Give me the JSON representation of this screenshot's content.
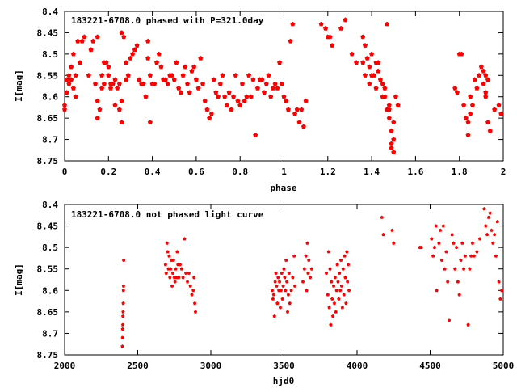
{
  "chart_data": [
    {
      "type": "scatter",
      "title": "183221-6708.0 phased with P=321.0day",
      "xlabel": "phase",
      "ylabel": "I[mag]",
      "xlim": [
        0,
        2
      ],
      "ylim": [
        8.4,
        8.75
      ],
      "y_inverted": true,
      "grid": false,
      "marker": "filled-pentagon",
      "color": "#ff0000",
      "x_ticks": [
        "0",
        "0.2",
        "0.4",
        "0.6",
        "0.8",
        "1",
        "1.2",
        "1.4",
        "1.6",
        "1.8",
        "2"
      ],
      "y_ticks": [
        "8.4",
        "8.45",
        "8.5",
        "8.55",
        "8.6",
        "8.65",
        "8.7",
        "8.75"
      ],
      "points": [
        [
          0.0,
          8.62
        ],
        [
          0.0,
          8.63
        ],
        [
          0.01,
          8.59
        ],
        [
          0.01,
          8.56
        ],
        [
          0.02,
          8.55
        ],
        [
          0.02,
          8.57
        ],
        [
          0.03,
          8.53
        ],
        [
          0.03,
          8.56
        ],
        [
          0.04,
          8.58
        ],
        [
          0.04,
          8.5
        ],
        [
          0.05,
          8.55
        ],
        [
          0.05,
          8.6
        ],
        [
          0.06,
          8.47
        ],
        [
          0.07,
          8.52
        ],
        [
          0.08,
          8.47
        ],
        [
          0.09,
          8.46
        ],
        [
          0.11,
          8.55
        ],
        [
          0.12,
          8.49
        ],
        [
          0.13,
          8.47
        ],
        [
          0.14,
          8.57
        ],
        [
          0.15,
          8.46
        ],
        [
          0.15,
          8.61
        ],
        [
          0.15,
          8.65
        ],
        [
          0.16,
          8.63
        ],
        [
          0.17,
          8.58
        ],
        [
          0.17,
          8.55
        ],
        [
          0.18,
          8.52
        ],
        [
          0.18,
          8.57
        ],
        [
          0.19,
          8.52
        ],
        [
          0.2,
          8.55
        ],
        [
          0.2,
          8.53
        ],
        [
          0.21,
          8.58
        ],
        [
          0.21,
          8.57
        ],
        [
          0.22,
          8.57
        ],
        [
          0.23,
          8.56
        ],
        [
          0.23,
          8.62
        ],
        [
          0.24,
          8.58
        ],
        [
          0.25,
          8.57
        ],
        [
          0.25,
          8.63
        ],
        [
          0.26,
          8.61
        ],
        [
          0.26,
          8.66
        ],
        [
          0.26,
          8.45
        ],
        [
          0.27,
          8.46
        ],
        [
          0.28,
          8.52
        ],
        [
          0.28,
          8.56
        ],
        [
          0.29,
          8.55
        ],
        [
          0.3,
          8.51
        ],
        [
          0.31,
          8.5
        ],
        [
          0.32,
          8.49
        ],
        [
          0.33,
          8.48
        ],
        [
          0.34,
          8.56
        ],
        [
          0.35,
          8.57
        ],
        [
          0.36,
          8.57
        ],
        [
          0.37,
          8.6
        ],
        [
          0.38,
          8.51
        ],
        [
          0.38,
          8.47
        ],
        [
          0.39,
          8.55
        ],
        [
          0.39,
          8.66
        ],
        [
          0.4,
          8.57
        ],
        [
          0.41,
          8.57
        ],
        [
          0.42,
          8.52
        ],
        [
          0.43,
          8.5
        ],
        [
          0.44,
          8.53
        ],
        [
          0.45,
          8.56
        ],
        [
          0.46,
          8.56
        ],
        [
          0.47,
          8.57
        ],
        [
          0.48,
          8.55
        ],
        [
          0.49,
          8.55
        ],
        [
          0.5,
          8.56
        ],
        [
          0.51,
          8.52
        ],
        [
          0.52,
          8.58
        ],
        [
          0.53,
          8.59
        ],
        [
          0.54,
          8.55
        ],
        [
          0.55,
          8.53
        ],
        [
          0.56,
          8.57
        ],
        [
          0.57,
          8.59
        ],
        [
          0.58,
          8.54
        ],
        [
          0.59,
          8.53
        ],
        [
          0.6,
          8.56
        ],
        [
          0.61,
          8.58
        ],
        [
          0.62,
          8.51
        ],
        [
          0.63,
          8.57
        ],
        [
          0.64,
          8.61
        ],
        [
          0.65,
          8.63
        ],
        [
          0.66,
          8.65
        ],
        [
          0.67,
          8.64
        ],
        [
          0.68,
          8.56
        ],
        [
          0.69,
          8.59
        ],
        [
          0.7,
          8.6
        ],
        [
          0.71,
          8.57
        ],
        [
          0.72,
          8.55
        ],
        [
          0.73,
          8.6
        ],
        [
          0.74,
          8.62
        ],
        [
          0.75,
          8.59
        ],
        [
          0.76,
          8.63
        ],
        [
          0.77,
          8.6
        ],
        [
          0.78,
          8.55
        ],
        [
          0.79,
          8.61
        ],
        [
          0.8,
          8.62
        ],
        [
          0.81,
          8.57
        ],
        [
          0.82,
          8.61
        ],
        [
          0.83,
          8.6
        ],
        [
          0.84,
          8.55
        ],
        [
          0.85,
          8.6
        ],
        [
          0.86,
          8.56
        ],
        [
          0.87,
          8.69
        ],
        [
          0.88,
          8.58
        ],
        [
          0.89,
          8.56
        ],
        [
          0.9,
          8.56
        ],
        [
          0.91,
          8.59
        ],
        [
          0.92,
          8.57
        ],
        [
          0.93,
          8.55
        ],
        [
          0.94,
          8.6
        ],
        [
          0.95,
          8.58
        ],
        [
          0.96,
          8.57
        ],
        [
          0.97,
          8.58
        ],
        [
          0.98,
          8.52
        ],
        [
          0.99,
          8.57
        ],
        [
          1.0,
          8.6
        ],
        [
          1.01,
          8.61
        ],
        [
          1.02,
          8.63
        ],
        [
          1.03,
          8.47
        ],
        [
          1.04,
          8.43
        ],
        [
          1.05,
          8.64
        ],
        [
          1.06,
          8.63
        ],
        [
          1.07,
          8.66
        ],
        [
          1.08,
          8.63
        ],
        [
          1.09,
          8.67
        ],
        [
          1.1,
          8.61
        ],
        [
          1.17,
          8.43
        ],
        [
          1.19,
          8.44
        ],
        [
          1.2,
          8.46
        ],
        [
          1.21,
          8.46
        ],
        [
          1.22,
          8.48
        ],
        [
          1.26,
          8.44
        ],
        [
          1.28,
          8.42
        ],
        [
          1.31,
          8.5
        ],
        [
          1.33,
          8.52
        ],
        [
          1.36,
          8.46
        ],
        [
          1.37,
          8.48
        ],
        [
          1.38,
          8.51
        ],
        [
          1.39,
          8.53
        ],
        [
          1.39,
          8.57
        ],
        [
          1.4,
          8.55
        ],
        [
          1.4,
          8.5
        ],
        [
          1.41,
          8.55
        ],
        [
          1.42,
          8.52
        ],
        [
          1.42,
          8.58
        ],
        [
          1.43,
          8.54
        ],
        [
          1.44,
          8.56
        ],
        [
          1.45,
          8.57
        ],
        [
          1.45,
          8.6
        ],
        [
          1.46,
          8.6
        ],
        [
          1.47,
          8.43
        ],
        [
          1.47,
          8.63
        ],
        [
          1.48,
          8.62
        ],
        [
          1.48,
          8.65
        ],
        [
          1.49,
          8.68
        ],
        [
          1.49,
          8.71
        ],
        [
          1.5,
          8.73
        ],
        [
          1.5,
          8.7
        ],
        [
          1.51,
          8.6
        ],
        [
          1.52,
          8.62
        ],
        [
          1.78,
          8.58
        ],
        [
          1.79,
          8.59
        ],
        [
          1.8,
          8.5
        ],
        [
          1.81,
          8.5
        ],
        [
          1.82,
          8.62
        ],
        [
          1.83,
          8.65
        ],
        [
          1.84,
          8.69
        ],
        [
          1.85,
          8.6
        ],
        [
          1.86,
          8.62
        ],
        [
          1.87,
          8.56
        ],
        [
          1.88,
          8.58
        ],
        [
          1.89,
          8.55
        ],
        [
          1.9,
          8.53
        ],
        [
          1.91,
          8.57
        ],
        [
          1.92,
          8.59
        ],
        [
          1.93,
          8.66
        ],
        [
          1.94,
          8.68
        ],
        [
          1.96,
          8.63
        ],
        [
          1.98,
          8.62
        ],
        [
          1.99,
          8.64
        ],
        [
          1.36,
          8.52
        ],
        [
          1.37,
          8.55
        ],
        [
          1.43,
          8.52
        ],
        [
          1.46,
          8.58
        ],
        [
          1.48,
          8.63
        ],
        [
          1.49,
          8.72
        ],
        [
          1.5,
          8.66
        ],
        [
          1.92,
          8.55
        ],
        [
          1.92,
          8.6
        ],
        [
          1.93,
          8.56
        ],
        [
          1.91,
          8.54
        ],
        [
          1.85,
          8.64
        ],
        [
          1.84,
          8.66
        ]
      ]
    },
    {
      "type": "scatter",
      "title": "183221-6708.0 not phased light curve",
      "xlabel": "hjd0",
      "ylabel": "I[mag]",
      "xlim": [
        2000,
        5000
      ],
      "ylim": [
        8.4,
        8.75
      ],
      "y_inverted": true,
      "grid": false,
      "marker": "filled-pentagon",
      "color": "#ff0000",
      "x_ticks": [
        "2000",
        "2500",
        "3000",
        "3500",
        "4000",
        "4500",
        "5000"
      ],
      "y_ticks": [
        "8.4",
        "8.45",
        "8.5",
        "8.55",
        "8.6",
        "8.65",
        "8.7",
        "8.75"
      ],
      "points": [
        [
          2395,
          8.73
        ],
        [
          2396,
          8.71
        ],
        [
          2397,
          8.69
        ],
        [
          2398,
          8.68
        ],
        [
          2399,
          8.66
        ],
        [
          2400,
          8.65
        ],
        [
          2401,
          8.63
        ],
        [
          2402,
          8.6
        ],
        [
          2403,
          8.59
        ],
        [
          2404,
          8.53
        ],
        [
          2690,
          8.54
        ],
        [
          2695,
          8.56
        ],
        [
          2700,
          8.49
        ],
        [
          2705,
          8.51
        ],
        [
          2710,
          8.55
        ],
        [
          2715,
          8.52
        ],
        [
          2720,
          8.57
        ],
        [
          2725,
          8.55
        ],
        [
          2730,
          8.53
        ],
        [
          2735,
          8.59
        ],
        [
          2740,
          8.56
        ],
        [
          2745,
          8.53
        ],
        [
          2750,
          8.57
        ],
        [
          2755,
          8.58
        ],
        [
          2760,
          8.55
        ],
        [
          2765,
          8.57
        ],
        [
          2770,
          8.51
        ],
        [
          2775,
          8.54
        ],
        [
          2780,
          8.57
        ],
        [
          2790,
          8.54
        ],
        [
          2800,
          8.55
        ],
        [
          2810,
          8.57
        ],
        [
          2820,
          8.48
        ],
        [
          2830,
          8.56
        ],
        [
          2840,
          8.58
        ],
        [
          2850,
          8.56
        ],
        [
          2860,
          8.59
        ],
        [
          2870,
          8.61
        ],
        [
          2880,
          8.6
        ],
        [
          2885,
          8.57
        ],
        [
          2890,
          8.63
        ],
        [
          2895,
          8.65
        ],
        [
          3420,
          8.6
        ],
        [
          3425,
          8.62
        ],
        [
          3430,
          8.61
        ],
        [
          3435,
          8.66
        ],
        [
          3440,
          8.58
        ],
        [
          3445,
          8.56
        ],
        [
          3450,
          8.59
        ],
        [
          3455,
          8.63
        ],
        [
          3460,
          8.57
        ],
        [
          3465,
          8.6
        ],
        [
          3470,
          8.58
        ],
        [
          3475,
          8.64
        ],
        [
          3480,
          8.6
        ],
        [
          3485,
          8.56
        ],
        [
          3490,
          8.62
        ],
        [
          3495,
          8.59
        ],
        [
          3500,
          8.55
        ],
        [
          3505,
          8.57
        ],
        [
          3510,
          8.6
        ],
        [
          3515,
          8.53
        ],
        [
          3520,
          8.58
        ],
        [
          3525,
          8.65
        ],
        [
          3530,
          8.61
        ],
        [
          3535,
          8.56
        ],
        [
          3540,
          8.63
        ],
        [
          3550,
          8.6
        ],
        [
          3560,
          8.57
        ],
        [
          3570,
          8.52
        ],
        [
          3575,
          8.59
        ],
        [
          3630,
          8.58
        ],
        [
          3640,
          8.55
        ],
        [
          3650,
          8.52
        ],
        [
          3655,
          8.6
        ],
        [
          3660,
          8.49
        ],
        [
          3665,
          8.56
        ],
        [
          3670,
          8.53
        ],
        [
          3680,
          8.57
        ],
        [
          3690,
          8.55
        ],
        [
          3790,
          8.56
        ],
        [
          3800,
          8.61
        ],
        [
          3805,
          8.51
        ],
        [
          3810,
          8.64
        ],
        [
          3815,
          8.55
        ],
        [
          3820,
          8.68
        ],
        [
          3825,
          8.58
        ],
        [
          3830,
          8.62
        ],
        [
          3835,
          8.66
        ],
        [
          3840,
          8.59
        ],
        [
          3845,
          8.63
        ],
        [
          3850,
          8.57
        ],
        [
          3855,
          8.65
        ],
        [
          3860,
          8.6
        ],
        [
          3865,
          8.54
        ],
        [
          3870,
          8.58
        ],
        [
          3875,
          8.62
        ],
        [
          3880,
          8.56
        ],
        [
          3885,
          8.6
        ],
        [
          3890,
          8.53
        ],
        [
          3895,
          8.59
        ],
        [
          3900,
          8.64
        ],
        [
          3905,
          8.55
        ],
        [
          3910,
          8.61
        ],
        [
          3915,
          8.52
        ],
        [
          3920,
          8.57
        ],
        [
          3925,
          8.63
        ],
        [
          3930,
          8.51
        ],
        [
          3935,
          8.58
        ],
        [
          3940,
          8.54
        ],
        [
          3945,
          8.6
        ],
        [
          4170,
          8.43
        ],
        [
          4180,
          8.47
        ],
        [
          4240,
          8.46
        ],
        [
          4250,
          8.49
        ],
        [
          4430,
          8.5
        ],
        [
          4440,
          8.5
        ],
        [
          4510,
          8.48
        ],
        [
          4520,
          8.52
        ],
        [
          4530,
          8.5
        ],
        [
          4540,
          8.45
        ],
        [
          4545,
          8.6
        ],
        [
          4560,
          8.49
        ],
        [
          4570,
          8.46
        ],
        [
          4580,
          8.53
        ],
        [
          4590,
          8.45
        ],
        [
          4600,
          8.55
        ],
        [
          4610,
          8.51
        ],
        [
          4620,
          8.58
        ],
        [
          4630,
          8.67
        ],
        [
          4650,
          8.47
        ],
        [
          4660,
          8.49
        ],
        [
          4670,
          8.55
        ],
        [
          4680,
          8.5
        ],
        [
          4690,
          8.58
        ],
        [
          4700,
          8.61
        ],
        [
          4710,
          8.53
        ],
        [
          4720,
          8.49
        ],
        [
          4730,
          8.55
        ],
        [
          4740,
          8.52
        ],
        [
          4760,
          8.68
        ],
        [
          4770,
          8.55
        ],
        [
          4780,
          8.52
        ],
        [
          4790,
          8.49
        ],
        [
          4800,
          8.52
        ],
        [
          4820,
          8.51
        ],
        [
          4840,
          8.48
        ],
        [
          4870,
          8.41
        ],
        [
          4880,
          8.45
        ],
        [
          4890,
          8.47
        ],
        [
          4900,
          8.43
        ],
        [
          4910,
          8.42
        ],
        [
          4920,
          8.46
        ],
        [
          4930,
          8.49
        ],
        [
          4940,
          8.47
        ],
        [
          4950,
          8.52
        ],
        [
          4960,
          8.44
        ],
        [
          4970,
          8.58
        ],
        [
          4980,
          8.62
        ],
        [
          4990,
          8.6
        ]
      ]
    }
  ]
}
